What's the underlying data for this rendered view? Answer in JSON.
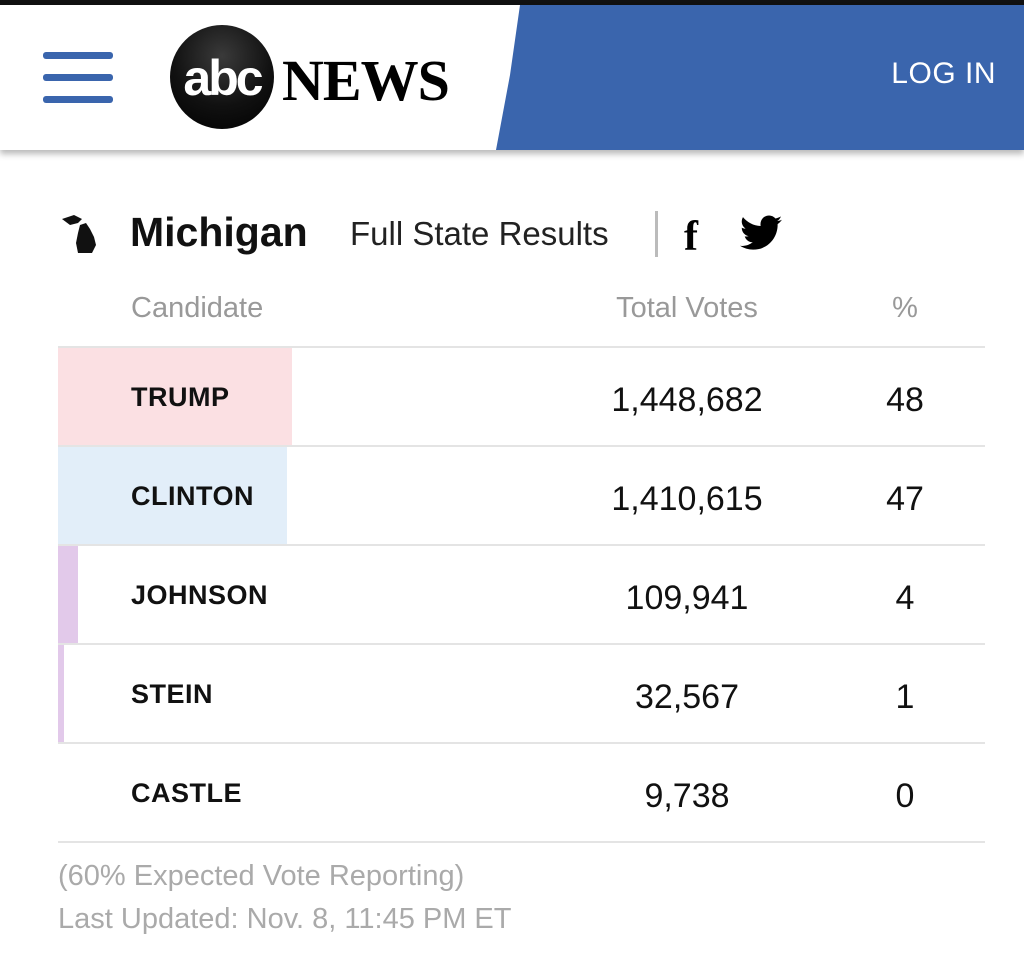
{
  "header": {
    "logo_abc": "abc",
    "logo_news": "NEWS",
    "login_label": "LOG IN",
    "brand_color": "#3a65ad"
  },
  "state": {
    "name": "Michigan",
    "full_results_label": "Full State Results"
  },
  "columns": {
    "candidate": "Candidate",
    "votes": "Total Votes",
    "pct": "%"
  },
  "candidates": [
    {
      "name": "TRUMP",
      "votes": "1,448,682",
      "pct": "48",
      "color": "#fbe0e3"
    },
    {
      "name": "CLINTON",
      "votes": "1,410,615",
      "pct": "47",
      "color": "#e2eef9"
    },
    {
      "name": "JOHNSON",
      "votes": "109,941",
      "pct": "4",
      "color": "#e2c9ea"
    },
    {
      "name": "STEIN",
      "votes": "32,567",
      "pct": "1",
      "color": "#e2c9ea"
    },
    {
      "name": "CASTLE",
      "votes": "9,738",
      "pct": "0",
      "color": "#ffffff"
    }
  ],
  "footer": {
    "reporting": "(60% Expected Vote Reporting)",
    "updated": "Last Updated: Nov. 8, 11:45 PM ET"
  }
}
